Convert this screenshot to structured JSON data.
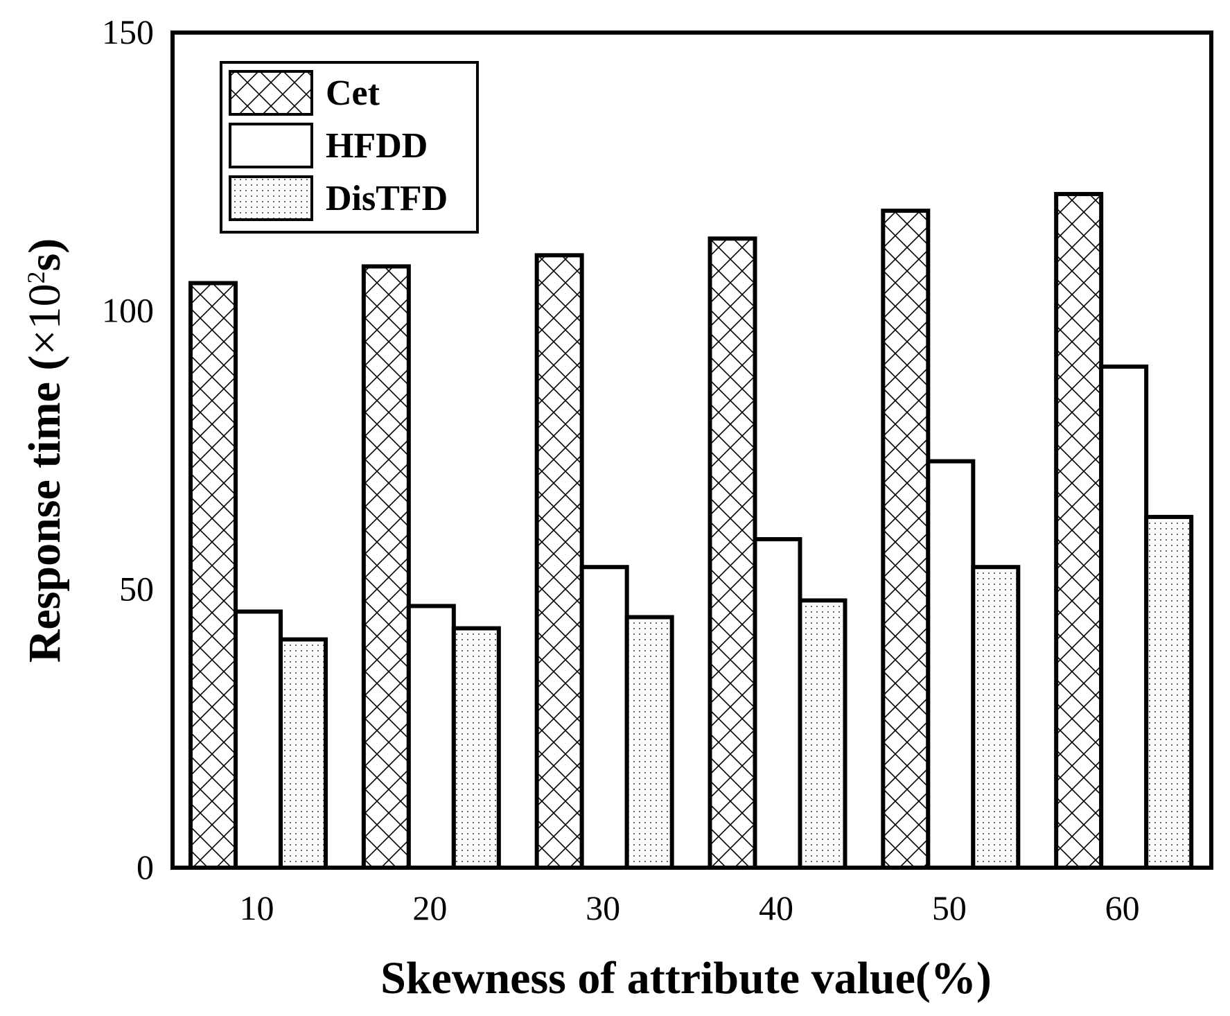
{
  "chart_data": {
    "type": "bar",
    "title": "",
    "xlabel": "Skewness of attribute value(%)",
    "ylabel_main": "Response time (",
    "ylabel_unit": "×10",
    "ylabel_sup": "2",
    "ylabel_end": "s)",
    "categories": [
      "10",
      "20",
      "30",
      "40",
      "50",
      "60"
    ],
    "ylim": [
      0,
      150
    ],
    "yticks": [
      "0",
      "50",
      "100",
      "150"
    ],
    "series": [
      {
        "name": "Cet",
        "pattern": "crosshatch",
        "values": [
          105,
          108,
          110,
          113,
          118,
          121
        ]
      },
      {
        "name": "HFDD",
        "pattern": "none",
        "values": [
          46,
          47,
          54,
          59,
          73,
          90
        ]
      },
      {
        "name": "DisTFD",
        "pattern": "dots",
        "values": [
          41,
          43,
          45,
          48,
          54,
          63
        ]
      }
    ],
    "legend_position": "top-left",
    "grid": false
  }
}
